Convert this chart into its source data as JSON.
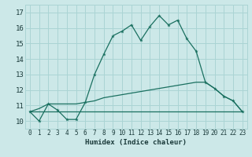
{
  "title": "",
  "xlabel": "Humidex (Indice chaleur)",
  "xlim": [
    -0.5,
    23.5
  ],
  "ylim": [
    9.5,
    17.5
  ],
  "xticks": [
    0,
    1,
    2,
    3,
    4,
    5,
    6,
    7,
    8,
    9,
    10,
    11,
    12,
    13,
    14,
    15,
    16,
    17,
    18,
    19,
    20,
    21,
    22,
    23
  ],
  "yticks": [
    10,
    11,
    12,
    13,
    14,
    15,
    16,
    17
  ],
  "background_color": "#cce8e8",
  "grid_color": "#aad4d4",
  "line_color": "#1a7060",
  "line1_x": [
    0,
    1,
    2,
    3,
    4,
    5,
    6,
    7,
    8,
    9,
    10,
    11,
    12,
    13,
    14,
    15,
    16,
    17,
    18,
    19,
    20,
    21,
    22,
    23
  ],
  "line1_y": [
    10.6,
    10.0,
    11.1,
    10.7,
    10.1,
    10.1,
    11.2,
    13.0,
    14.3,
    15.5,
    15.8,
    16.2,
    15.2,
    16.1,
    16.8,
    16.2,
    16.5,
    15.3,
    14.5,
    12.5,
    12.1,
    11.6,
    11.3,
    10.6
  ],
  "line2_x": [
    0,
    1,
    2,
    3,
    4,
    5,
    6,
    7,
    8,
    9,
    10,
    11,
    12,
    13,
    14,
    15,
    16,
    17,
    18,
    19,
    20,
    21,
    22,
    23
  ],
  "line2_y": [
    10.6,
    10.8,
    11.1,
    11.1,
    11.1,
    11.1,
    11.2,
    11.3,
    11.5,
    11.6,
    11.7,
    11.8,
    11.9,
    12.0,
    12.1,
    12.2,
    12.3,
    12.4,
    12.5,
    12.5,
    12.1,
    11.6,
    11.3,
    10.6
  ],
  "line3_x": [
    0,
    1,
    2,
    3,
    4,
    5,
    6,
    7,
    8,
    9,
    10,
    11,
    12,
    13,
    14,
    15,
    16,
    17,
    18,
    19,
    20,
    21,
    22,
    23
  ],
  "line3_y": [
    10.6,
    10.6,
    10.6,
    10.6,
    10.6,
    10.6,
    10.6,
    10.6,
    10.6,
    10.6,
    10.6,
    10.6,
    10.6,
    10.6,
    10.6,
    10.6,
    10.6,
    10.6,
    10.6,
    10.6,
    10.6,
    10.6,
    10.6,
    10.6
  ]
}
